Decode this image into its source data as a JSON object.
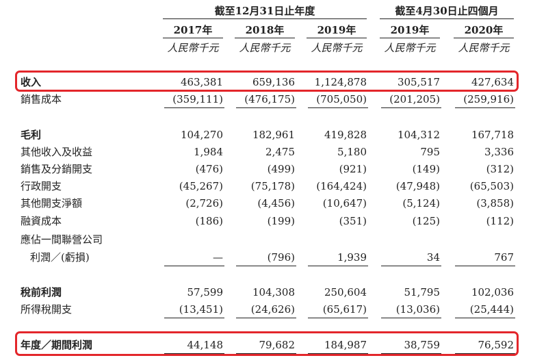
{
  "header": {
    "group1_title": "截至12月31日止年度",
    "group2_title": "截至4月30日止四個月",
    "years": [
      "2017年",
      "2018年",
      "2019年",
      "2019年",
      "2020年"
    ],
    "unit": "人民幣千元"
  },
  "rows": [
    {
      "label": "收入",
      "values": [
        "463,381",
        "659,136",
        "1,124,878",
        "305,517",
        "427,634"
      ]
    },
    {
      "label": "銷售成本",
      "values": [
        "(359,111)",
        "(476,175)",
        "(705,050)",
        "(201,205)",
        "(259,916)"
      ]
    },
    {
      "label": "毛利",
      "values": [
        "104,270",
        "182,961",
        "419,828",
        "104,312",
        "167,718"
      ]
    },
    {
      "label": "其他收入及收益",
      "values": [
        "1,984",
        "2,475",
        "5,180",
        "795",
        "3,336"
      ]
    },
    {
      "label": "銷售及分銷開支",
      "values": [
        "(476)",
        "(499)",
        "(921)",
        "(149)",
        "(312)"
      ]
    },
    {
      "label": "行政開支",
      "values": [
        "(45,267)",
        "(75,178)",
        "(164,424)",
        "(47,948)",
        "(65,503)"
      ]
    },
    {
      "label": "其他開支淨額",
      "values": [
        "(2,726)",
        "(4,456)",
        "(10,647)",
        "(5,124)",
        "(3,858)"
      ]
    },
    {
      "label": "融資成本",
      "values": [
        "(186)",
        "(199)",
        "(351)",
        "(125)",
        "(112)"
      ]
    },
    {
      "label": "應佔一間聯營公司",
      "values": [
        "",
        "",
        "",
        "",
        ""
      ]
    },
    {
      "label": "利潤／(虧損)",
      "values": [
        "—",
        "(796)",
        "1,939",
        "34",
        "767"
      ]
    },
    {
      "label": "稅前利潤",
      "values": [
        "57,599",
        "104,308",
        "250,604",
        "51,795",
        "102,036"
      ]
    },
    {
      "label": "所得稅開支",
      "values": [
        "(13,451)",
        "(24,626)",
        "(65,617)",
        "(13,036)",
        "(25,444)"
      ]
    },
    {
      "label": "年度／期間利潤",
      "values": [
        "44,148",
        "79,682",
        "184,987",
        "38,759",
        "76,592"
      ]
    }
  ]
}
